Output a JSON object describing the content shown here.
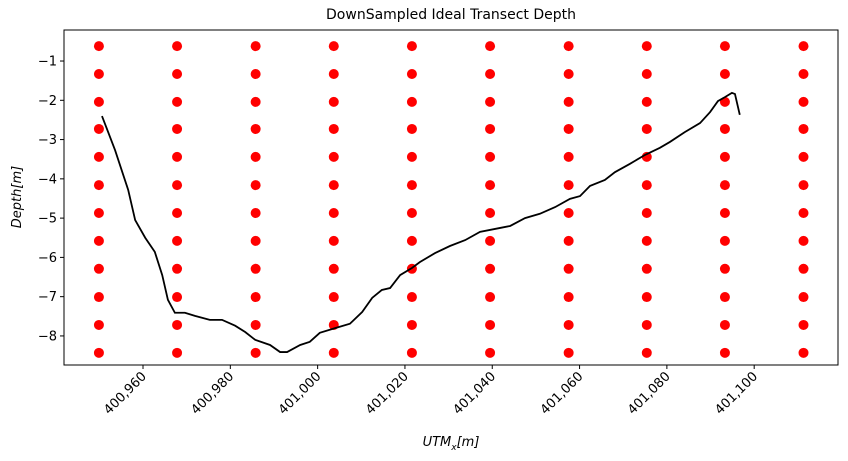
{
  "chart_data": {
    "type": "scatter-line",
    "title": "DownSampled Ideal Transect Depth",
    "x_label": {
      "main": "UTM",
      "sub": "x",
      "rest": "[m]"
    },
    "y_label": "Depth[m]",
    "xlim": [
      400941.9,
      401119.2
    ],
    "ylim": [
      -8.74,
      -0.21
    ],
    "xticks": [
      {
        "value": 400960,
        "label": "400,960"
      },
      {
        "value": 400980,
        "label": "400,980"
      },
      {
        "value": 401000,
        "label": "401,000"
      },
      {
        "value": 401020,
        "label": "401,020"
      },
      {
        "value": 401040,
        "label": "401,040"
      },
      {
        "value": 401060,
        "label": "401,060"
      },
      {
        "value": 401080,
        "label": "401,080"
      },
      {
        "value": 401100,
        "label": "401,100"
      }
    ],
    "yticks": [
      {
        "value": -1,
        "label": "−1"
      },
      {
        "value": -2,
        "label": "−2"
      },
      {
        "value": -3,
        "label": "−3"
      },
      {
        "value": -4,
        "label": "−4"
      },
      {
        "value": -5,
        "label": "−5"
      },
      {
        "value": -6,
        "label": "−6"
      },
      {
        "value": -7,
        "label": "−7"
      },
      {
        "value": -8,
        "label": "−8"
      }
    ],
    "points": {
      "color": "#ff0000",
      "x": [
        400949.9,
        400949.9,
        400949.9,
        400949.9,
        400949.9,
        400949.9,
        400949.9,
        400949.9,
        400949.9,
        400949.9,
        400949.9,
        400949.9,
        400967.8,
        400967.8,
        400967.8,
        400967.8,
        400967.8,
        400967.8,
        400967.8,
        400967.8,
        400967.8,
        400967.8,
        400967.8,
        400967.8,
        400985.8,
        400985.8,
        400985.8,
        400985.8,
        400985.8,
        400985.8,
        400985.8,
        400985.8,
        400985.8,
        400985.8,
        400985.8,
        400985.8,
        401003.7,
        401003.7,
        401003.7,
        401003.7,
        401003.7,
        401003.7,
        401003.7,
        401003.7,
        401003.7,
        401003.7,
        401003.7,
        401003.7,
        401021.6,
        401021.6,
        401021.6,
        401021.6,
        401021.6,
        401021.6,
        401021.6,
        401021.6,
        401021.6,
        401021.6,
        401021.6,
        401021.6,
        401039.5,
        401039.5,
        401039.5,
        401039.5,
        401039.5,
        401039.5,
        401039.5,
        401039.5,
        401039.5,
        401039.5,
        401039.5,
        401039.5,
        401057.5,
        401057.5,
        401057.5,
        401057.5,
        401057.5,
        401057.5,
        401057.5,
        401057.5,
        401057.5,
        401057.5,
        401057.5,
        401057.5,
        401075.4,
        401075.4,
        401075.4,
        401075.4,
        401075.4,
        401075.4,
        401075.4,
        401075.4,
        401075.4,
        401075.4,
        401075.4,
        401075.4,
        401093.3,
        401093.3,
        401093.3,
        401093.3,
        401093.3,
        401093.3,
        401093.3,
        401093.3,
        401093.3,
        401093.3,
        401093.3,
        401093.3,
        401111.3,
        401111.3,
        401111.3,
        401111.3,
        401111.3,
        401111.3,
        401111.3,
        401111.3,
        401111.3,
        401111.3,
        401111.3,
        401111.3
      ],
      "y": [
        -0.62,
        -1.33,
        -2.04,
        -2.73,
        -3.44,
        -4.16,
        -4.87,
        -5.58,
        -6.29,
        -7.01,
        -7.72,
        -8.43,
        -0.62,
        -1.33,
        -2.04,
        -2.73,
        -3.44,
        -4.16,
        -4.87,
        -5.58,
        -6.29,
        -7.01,
        -7.72,
        -8.43,
        -0.62,
        -1.33,
        -2.04,
        -2.73,
        -3.44,
        -4.16,
        -4.87,
        -5.58,
        -6.29,
        -7.01,
        -7.72,
        -8.43,
        -0.62,
        -1.33,
        -2.04,
        -2.73,
        -3.44,
        -4.16,
        -4.87,
        -5.58,
        -6.29,
        -7.01,
        -7.72,
        -8.43,
        -0.62,
        -1.33,
        -2.04,
        -2.73,
        -3.44,
        -4.16,
        -4.87,
        -5.58,
        -6.29,
        -7.01,
        -7.72,
        -8.43,
        -0.62,
        -1.33,
        -2.04,
        -2.73,
        -3.44,
        -4.16,
        -4.87,
        -5.58,
        -6.29,
        -7.01,
        -7.72,
        -8.43,
        -0.62,
        -1.33,
        -2.04,
        -2.73,
        -3.44,
        -4.16,
        -4.87,
        -5.58,
        -6.29,
        -7.01,
        -7.72,
        -8.43,
        -0.62,
        -1.33,
        -2.04,
        -2.73,
        -3.44,
        -4.16,
        -4.87,
        -5.58,
        -6.29,
        -7.01,
        -7.72,
        -8.43,
        -0.62,
        -1.33,
        -2.04,
        -2.73,
        -3.44,
        -4.16,
        -4.87,
        -5.58,
        -6.29,
        -7.01,
        -7.72,
        -8.43,
        -0.62,
        -1.33,
        -2.04,
        -2.73,
        -3.44,
        -4.16,
        -4.87,
        -5.58,
        -6.29,
        -7.01,
        -7.72,
        -8.43
      ]
    },
    "line": {
      "color": "#000000",
      "x": [
        400950.6,
        400953.6,
        400956.6,
        400958.2,
        400960.5,
        400962.7,
        400964.4,
        400965.7,
        400967.3,
        400969.6,
        400971.9,
        400975.3,
        400978.1,
        400981.1,
        400983.4,
        400985.7,
        400989.1,
        400991.4,
        400993.0,
        400996.0,
        400998.2,
        401000.5,
        401004.0,
        401007.4,
        401010.2,
        401012.5,
        401014.7,
        401016.6,
        401018.9,
        401021.6,
        401023.4,
        401026.9,
        401030.3,
        401033.8,
        401037.2,
        401041.8,
        401044.1,
        401047.5,
        401050.9,
        401054.4,
        401057.8,
        401060.1,
        401062.4,
        401065.8,
        401068.1,
        401071.5,
        401075.0,
        401078.4,
        401080.7,
        401084.1,
        401087.6,
        401089.9,
        401091.7,
        401093.3,
        401094.9,
        401095.6,
        401096.7
      ],
      "y": [
        -2.4,
        -3.27,
        -4.28,
        -5.05,
        -5.5,
        -5.86,
        -6.45,
        -7.08,
        -7.41,
        -7.41,
        -7.49,
        -7.59,
        -7.59,
        -7.74,
        -7.9,
        -8.1,
        -8.23,
        -8.41,
        -8.41,
        -8.23,
        -8.15,
        -7.92,
        -7.8,
        -7.69,
        -7.39,
        -7.03,
        -6.83,
        -6.78,
        -6.45,
        -6.27,
        -6.12,
        -5.89,
        -5.71,
        -5.56,
        -5.35,
        -5.25,
        -5.2,
        -5.0,
        -4.89,
        -4.72,
        -4.51,
        -4.44,
        -4.18,
        -4.03,
        -3.83,
        -3.62,
        -3.39,
        -3.21,
        -3.06,
        -2.81,
        -2.58,
        -2.3,
        -2.02,
        -1.92,
        -1.81,
        -1.84,
        -2.37
      ]
    }
  }
}
